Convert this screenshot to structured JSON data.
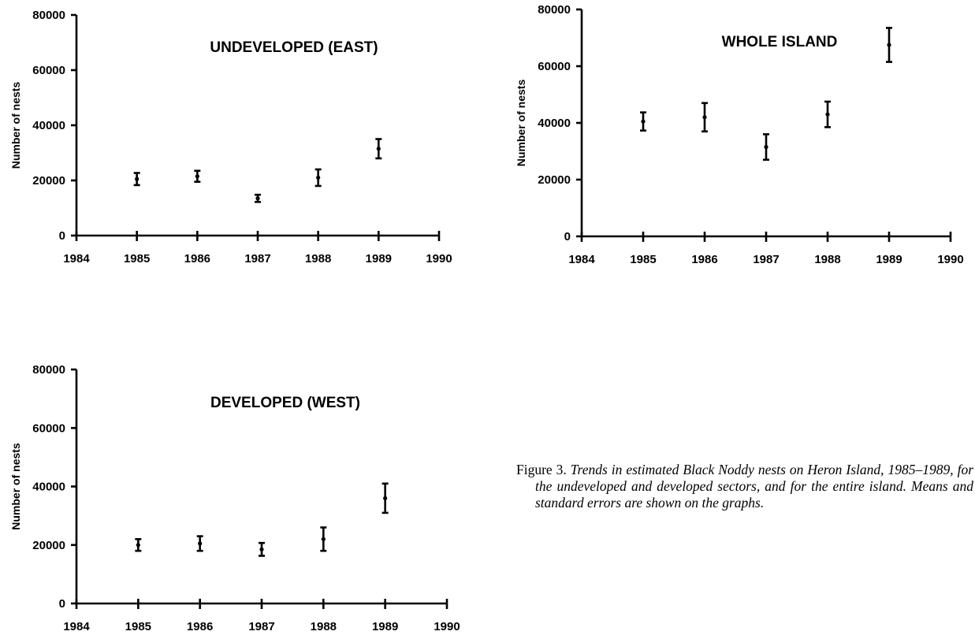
{
  "chart_data": [
    {
      "type": "scatter",
      "title": "UNDEVELOPED (EAST)",
      "xlabel": "",
      "ylabel": "Number of nests",
      "xlim": [
        1984,
        1990
      ],
      "ylim": [
        0,
        80000
      ],
      "xticks": [
        1984,
        1985,
        1986,
        1987,
        1988,
        1989,
        1990
      ],
      "yticks": [
        0,
        20000,
        40000,
        60000,
        80000
      ],
      "x": [
        1985,
        1986,
        1987,
        1988,
        1989
      ],
      "y": [
        20500,
        21500,
        13500,
        21000,
        31500
      ],
      "y_err": [
        2200,
        2000,
        1300,
        3000,
        3500
      ],
      "grid": false
    },
    {
      "type": "scatter",
      "title": "WHOLE ISLAND",
      "xlabel": "",
      "ylabel": "Number of nests",
      "xlim": [
        1984,
        1990
      ],
      "ylim": [
        0,
        80000
      ],
      "xticks": [
        1984,
        1985,
        1986,
        1987,
        1988,
        1989,
        1990
      ],
      "yticks": [
        0,
        20000,
        40000,
        60000,
        80000
      ],
      "x": [
        1985,
        1986,
        1987,
        1988,
        1989
      ],
      "y": [
        40500,
        42000,
        31500,
        43000,
        67500
      ],
      "y_err": [
        3200,
        5000,
        4500,
        4500,
        6000
      ],
      "grid": false
    },
    {
      "type": "scatter",
      "title": "DEVELOPED (WEST)",
      "xlabel": "",
      "ylabel": "Number of nests",
      "xlim": [
        1984,
        1990
      ],
      "ylim": [
        0,
        80000
      ],
      "xticks": [
        1984,
        1985,
        1986,
        1987,
        1988,
        1989,
        1990
      ],
      "yticks": [
        0,
        20000,
        40000,
        60000,
        80000
      ],
      "x": [
        1985,
        1986,
        1987,
        1988,
        1989
      ],
      "y": [
        20000,
        20500,
        18500,
        22000,
        36000
      ],
      "y_err": [
        2000,
        2500,
        2200,
        4000,
        5000
      ],
      "grid": false
    }
  ],
  "caption": {
    "label": "Figure 3.",
    "text": "Trends in estimated Black Noddy nests on Heron Island, 1985–1989, for the undeveloped and developed sectors, and for the entire island. Means and standard errors are shown on the graphs."
  }
}
